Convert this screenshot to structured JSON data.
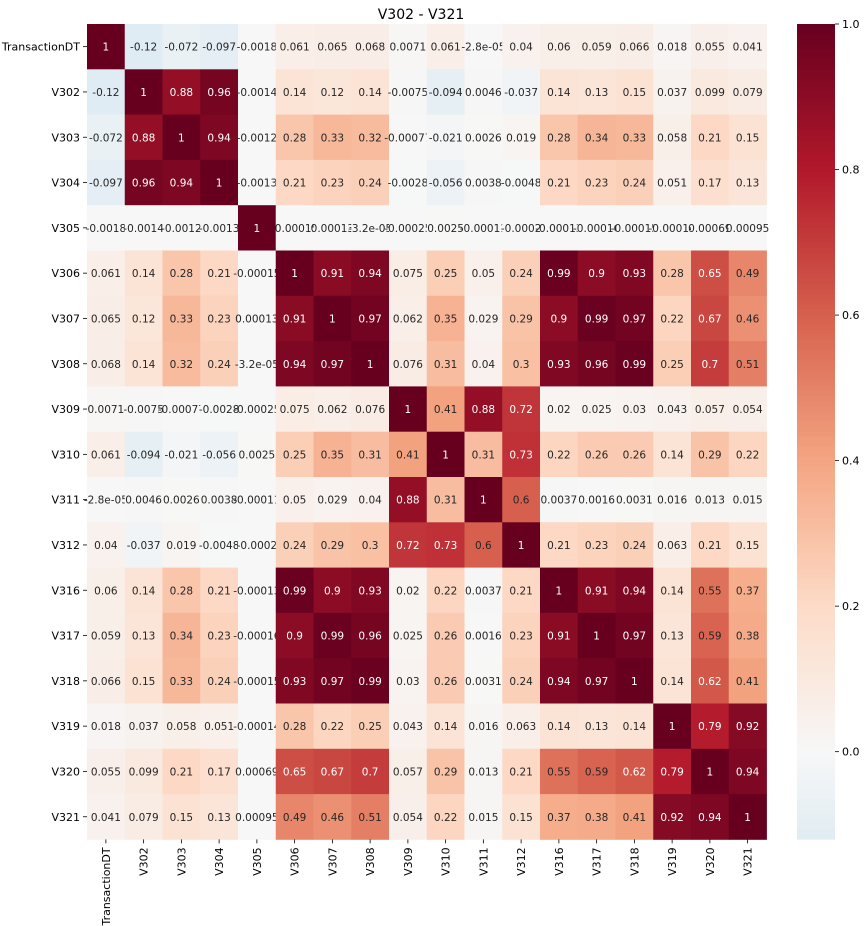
{
  "chart_data": {
    "type": "heatmap",
    "title": "V302 - V321",
    "xlabel": "",
    "ylabel": "",
    "labels": [
      "TransactionDT",
      "V302",
      "V303",
      "V304",
      "V305",
      "V306",
      "V307",
      "V308",
      "V309",
      "V310",
      "V311",
      "V312",
      "V316",
      "V317",
      "V318",
      "V319",
      "V320",
      "V321"
    ],
    "cell_text": [
      [
        "1",
        "-0.12",
        "-0.072",
        "-0.097",
        "-0.0018",
        "0.061",
        "0.065",
        "0.068",
        "0.0071",
        "0.061",
        "-2.8e-05",
        "0.04",
        "0.06",
        "0.059",
        "0.066",
        "0.018",
        "0.055",
        "0.041"
      ],
      [
        "-0.12",
        "1",
        "0.88",
        "0.96",
        "-0.0014",
        "0.14",
        "0.12",
        "0.14",
        "-0.0075",
        "-0.094",
        "0.0046",
        "-0.037",
        "0.14",
        "0.13",
        "0.15",
        "0.037",
        "0.099",
        "0.079"
      ],
      [
        "-0.072",
        "0.88",
        "1",
        "0.94",
        "-0.0012",
        "0.28",
        "0.33",
        "0.32",
        "-0.00077",
        "-0.021",
        "0.0026",
        "0.019",
        "0.28",
        "0.34",
        "0.33",
        "0.058",
        "0.21",
        "0.15"
      ],
      [
        "-0.097",
        "0.96",
        "0.94",
        "1",
        "-0.0013",
        "0.21",
        "0.23",
        "0.24",
        "-0.0028",
        "-0.056",
        "0.0038",
        "-0.0048",
        "0.21",
        "0.23",
        "0.24",
        "0.051",
        "0.17",
        "0.13"
      ],
      [
        "-0.0018",
        "-0.0014",
        "-0.0012",
        "-0.0013",
        "1",
        "-0.00015",
        "0.00013",
        "-3.2e-05",
        "-0.00025",
        "0.0025",
        "-0.00011",
        "-0.0002",
        "-0.00013",
        "-0.00016",
        "-0.00015",
        "-0.00014",
        "0.00069",
        "0.00095"
      ],
      [
        "0.061",
        "0.14",
        "0.28",
        "0.21",
        "-0.00015",
        "1",
        "0.91",
        "0.94",
        "0.075",
        "0.25",
        "0.05",
        "0.24",
        "0.99",
        "0.9",
        "0.93",
        "0.28",
        "0.65",
        "0.49"
      ],
      [
        "0.065",
        "0.12",
        "0.33",
        "0.23",
        "0.00013",
        "0.91",
        "1",
        "0.97",
        "0.062",
        "0.35",
        "0.029",
        "0.29",
        "0.9",
        "0.99",
        "0.97",
        "0.22",
        "0.67",
        "0.46"
      ],
      [
        "0.068",
        "0.14",
        "0.32",
        "0.24",
        "-3.2e-05",
        "0.94",
        "0.97",
        "1",
        "0.076",
        "0.31",
        "0.04",
        "0.3",
        "0.93",
        "0.96",
        "0.99",
        "0.25",
        "0.7",
        "0.51"
      ],
      [
        "0.0071",
        "-0.0075",
        "-0.00077",
        "-0.0028",
        "-0.00025",
        "0.075",
        "0.062",
        "0.076",
        "1",
        "0.41",
        "0.88",
        "0.72",
        "0.02",
        "0.025",
        "0.03",
        "0.043",
        "0.057",
        "0.054"
      ],
      [
        "0.061",
        "-0.094",
        "-0.021",
        "-0.056",
        "0.0025",
        "0.25",
        "0.35",
        "0.31",
        "0.41",
        "1",
        "0.31",
        "0.73",
        "0.22",
        "0.26",
        "0.26",
        "0.14",
        "0.29",
        "0.22"
      ],
      [
        "-2.8e-05",
        "0.0046",
        "0.0026",
        "0.0038",
        "-0.00011",
        "0.05",
        "0.029",
        "0.04",
        "0.88",
        "0.31",
        "1",
        "0.6",
        "0.0037",
        "0.0016",
        "0.0031",
        "0.016",
        "0.013",
        "0.015"
      ],
      [
        "0.04",
        "-0.037",
        "0.019",
        "-0.0048",
        "-0.0002",
        "0.24",
        "0.29",
        "0.3",
        "0.72",
        "0.73",
        "0.6",
        "1",
        "0.21",
        "0.23",
        "0.24",
        "0.063",
        "0.21",
        "0.15"
      ],
      [
        "0.06",
        "0.14",
        "0.28",
        "0.21",
        "-0.00013",
        "0.99",
        "0.9",
        "0.93",
        "0.02",
        "0.22",
        "0.0037",
        "0.21",
        "1",
        "0.91",
        "0.94",
        "0.14",
        "0.55",
        "0.37"
      ],
      [
        "0.059",
        "0.13",
        "0.34",
        "0.23",
        "-0.00016",
        "0.9",
        "0.99",
        "0.96",
        "0.025",
        "0.26",
        "0.0016",
        "0.23",
        "0.91",
        "1",
        "0.97",
        "0.13",
        "0.59",
        "0.38"
      ],
      [
        "0.066",
        "0.15",
        "0.33",
        "0.24",
        "-0.00015",
        "0.93",
        "0.97",
        "0.99",
        "0.03",
        "0.26",
        "0.0031",
        "0.24",
        "0.94",
        "0.97",
        "1",
        "0.14",
        "0.62",
        "0.41"
      ],
      [
        "0.018",
        "0.037",
        "0.058",
        "0.051",
        "-0.00014",
        "0.28",
        "0.22",
        "0.25",
        "0.043",
        "0.14",
        "0.016",
        "0.063",
        "0.14",
        "0.13",
        "0.14",
        "1",
        "0.79",
        "0.92"
      ],
      [
        "0.055",
        "0.099",
        "0.21",
        "0.17",
        "0.00069",
        "0.65",
        "0.67",
        "0.7",
        "0.057",
        "0.29",
        "0.013",
        "0.21",
        "0.55",
        "0.59",
        "0.62",
        "0.79",
        "1",
        "0.94"
      ],
      [
        "0.041",
        "0.079",
        "0.15",
        "0.13",
        "0.00095",
        "0.49",
        "0.46",
        "0.51",
        "0.054",
        "0.22",
        "0.015",
        "0.15",
        "0.37",
        "0.38",
        "0.41",
        "0.92",
        "0.94",
        "1"
      ]
    ],
    "colorbar": {
      "ticks": [
        0.0,
        0.2,
        0.4,
        0.6,
        0.8,
        1.0
      ],
      "tick_labels": [
        "0.0",
        "0.2",
        "0.4",
        "0.6",
        "0.8",
        "1.0"
      ],
      "range": [
        -0.12,
        1.0
      ],
      "colormap": "RdBu_r centered at 0"
    },
    "grid": false,
    "legend": "colorbar-right"
  }
}
